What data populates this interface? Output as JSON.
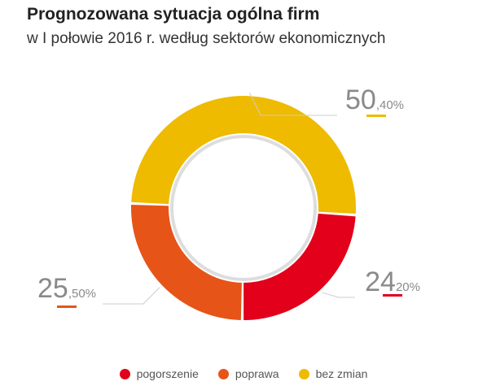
{
  "title": "Prognozowana sytuacja ogólna firm",
  "subtitle": "w I połowie 2016 r. według sektorów ekonomicznych",
  "chart_data": {
    "type": "pie",
    "variant": "donut",
    "categories": [
      "pogorszenie",
      "poprawa",
      "bez zmian"
    ],
    "values": [
      24.2,
      25.5,
      50.4
    ],
    "labels": [
      {
        "whole": "24",
        "decimal": "20%"
      },
      {
        "whole": "25",
        "decimal": ",50%"
      },
      {
        "whole": "50",
        "decimal": ",40%"
      }
    ],
    "colors": [
      "#e2001a",
      "#e65418",
      "#eebb00"
    ],
    "legend_position": "bottom"
  },
  "legend": {
    "items": [
      {
        "label": "pogorszenie",
        "color": "#e2001a"
      },
      {
        "label": "poprawa",
        "color": "#e65418"
      },
      {
        "label": "bez zmian",
        "color": "#eebb00"
      }
    ]
  }
}
